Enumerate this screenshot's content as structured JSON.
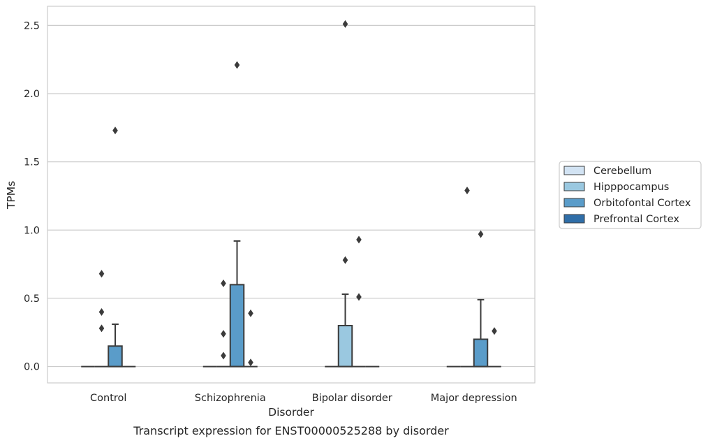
{
  "caption": "Transcript expression for ENST00000525288 by disorder",
  "chart_data": {
    "type": "box",
    "xlabel": "Disorder",
    "ylabel": "TPMs",
    "categories": [
      "Control",
      "Schizophrenia",
      "Bipolar disorder",
      "Major depression"
    ],
    "yticks": [
      "0.0",
      "0.5",
      "1.0",
      "1.5",
      "2.0",
      "2.5"
    ],
    "ylim": [
      -0.12,
      2.64
    ],
    "grid": "horizontal",
    "legend_position": "right",
    "series": [
      {
        "name": "Cerebellum",
        "color": "#d2e3f3",
        "boxes": [
          {
            "q1": 0,
            "median": 0,
            "q3": 0,
            "whisker_low": 0,
            "whisker_high": 0,
            "outliers": []
          },
          {
            "q1": 0,
            "median": 0,
            "q3": 0,
            "whisker_low": 0,
            "whisker_high": 0,
            "outliers": []
          },
          {
            "q1": 0,
            "median": 0,
            "q3": 0,
            "whisker_low": 0,
            "whisker_high": 0,
            "outliers": []
          },
          {
            "q1": 0,
            "median": 0,
            "q3": 0,
            "whisker_low": 0,
            "whisker_high": 0,
            "outliers": []
          }
        ]
      },
      {
        "name": "Hipppocampus",
        "color": "#9ac8e0",
        "boxes": [
          {
            "q1": 0,
            "median": 0,
            "q3": 0,
            "whisker_low": 0,
            "whisker_high": 0,
            "outliers": [
              0.28,
              0.4,
              0.68
            ]
          },
          {
            "q1": 0,
            "median": 0,
            "q3": 0,
            "whisker_low": 0,
            "whisker_high": 0,
            "outliers": [
              0.08,
              0.24,
              0.61
            ]
          },
          {
            "q1": 0,
            "median": 0,
            "q3": 0.3,
            "whisker_low": 0,
            "whisker_high": 0.53,
            "outliers": [
              0.78,
              2.51
            ]
          },
          {
            "q1": 0,
            "median": 0,
            "q3": 0,
            "whisker_low": 0,
            "whisker_high": 0,
            "outliers": [
              1.29
            ]
          }
        ]
      },
      {
        "name": "Orbitofontal Cortex",
        "color": "#5a9cc9",
        "boxes": [
          {
            "q1": 0,
            "median": 0,
            "q3": 0.15,
            "whisker_low": 0,
            "whisker_high": 0.31,
            "outliers": [
              1.73
            ]
          },
          {
            "q1": 0,
            "median": 0,
            "q3": 0.6,
            "whisker_low": 0,
            "whisker_high": 0.92,
            "outliers": [
              2.21
            ]
          },
          {
            "q1": 0,
            "median": 0,
            "q3": 0,
            "whisker_low": 0,
            "whisker_high": 0,
            "outliers": [
              0.51,
              0.93
            ]
          },
          {
            "q1": 0,
            "median": 0,
            "q3": 0.2,
            "whisker_low": 0,
            "whisker_high": 0.49,
            "outliers": [
              0.97
            ]
          }
        ]
      },
      {
        "name": "Prefrontal Cortex",
        "color": "#2f6ea8",
        "boxes": [
          {
            "q1": 0,
            "median": 0,
            "q3": 0,
            "whisker_low": 0,
            "whisker_high": 0,
            "outliers": []
          },
          {
            "q1": 0,
            "median": 0,
            "q3": 0,
            "whisker_low": 0,
            "whisker_high": 0,
            "outliers": [
              0.03,
              0.39
            ]
          },
          {
            "q1": 0,
            "median": 0,
            "q3": 0,
            "whisker_low": 0,
            "whisker_high": 0,
            "outliers": []
          },
          {
            "q1": 0,
            "median": 0,
            "q3": 0,
            "whisker_low": 0,
            "whisker_high": 0,
            "outliers": [
              0.26
            ]
          }
        ]
      }
    ]
  }
}
